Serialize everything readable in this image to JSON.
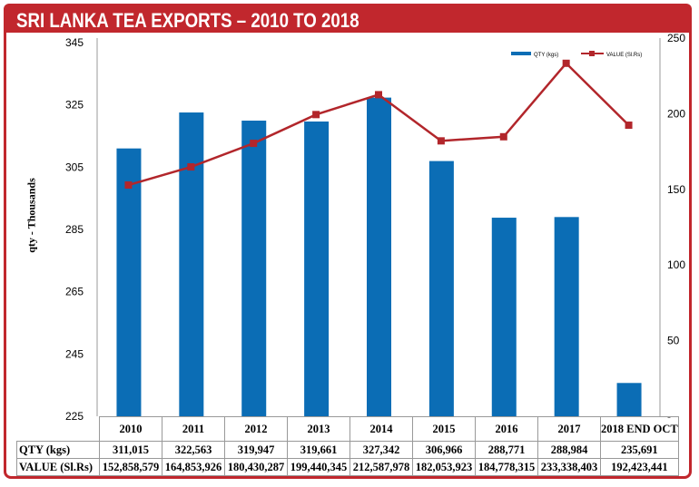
{
  "title": "SRI LANKA TEA EXPORTS – 2010 TO 2018",
  "chart_data": {
    "type": "bar+line",
    "categories": [
      "2010",
      "2011",
      "2012",
      "2013",
      "2014",
      "2015",
      "2016",
      "2017",
      "2018 END OCT"
    ],
    "ylabel": "qty - Thousands",
    "ylim": [
      225,
      345
    ],
    "yticks": [
      225,
      245,
      265,
      285,
      305,
      325,
      345
    ],
    "y2lim": [
      0,
      250
    ],
    "y2ticks": [
      "-",
      "50",
      "100",
      "150",
      "200",
      "250"
    ],
    "series": [
      {
        "name": "QTY (kgs)",
        "type": "bar",
        "axis": "left",
        "color": "#0b6db5",
        "values": [
          311.015,
          322.563,
          319.947,
          319.661,
          327.342,
          306.966,
          288.771,
          288.984,
          235.691
        ]
      },
      {
        "name": "VALUE (Sl.Rs)",
        "type": "line",
        "axis": "right",
        "color": "#b2262b",
        "values": [
          152.858579,
          164.853926,
          180.430287,
          199.440345,
          212.587978,
          182.053923,
          184.778315,
          233.338403,
          192.423441
        ]
      }
    ],
    "legend_position": "top-right",
    "grid": false,
    "table": {
      "rows": [
        {
          "label": "QTY (kgs)",
          "cells": [
            "311,015",
            "322,563",
            "319,947",
            "319,661",
            "327,342",
            "306,966",
            "288,771",
            "288,984",
            "235,691"
          ]
        },
        {
          "label": "VALUE (Sl.Rs)",
          "cells": [
            "152,858,579",
            "164,853,926",
            "180,430,287",
            "199,440,345",
            "212,587,978",
            "182,053,923",
            "184,778,315",
            "233,338,403",
            "192,423,441"
          ]
        }
      ]
    }
  }
}
